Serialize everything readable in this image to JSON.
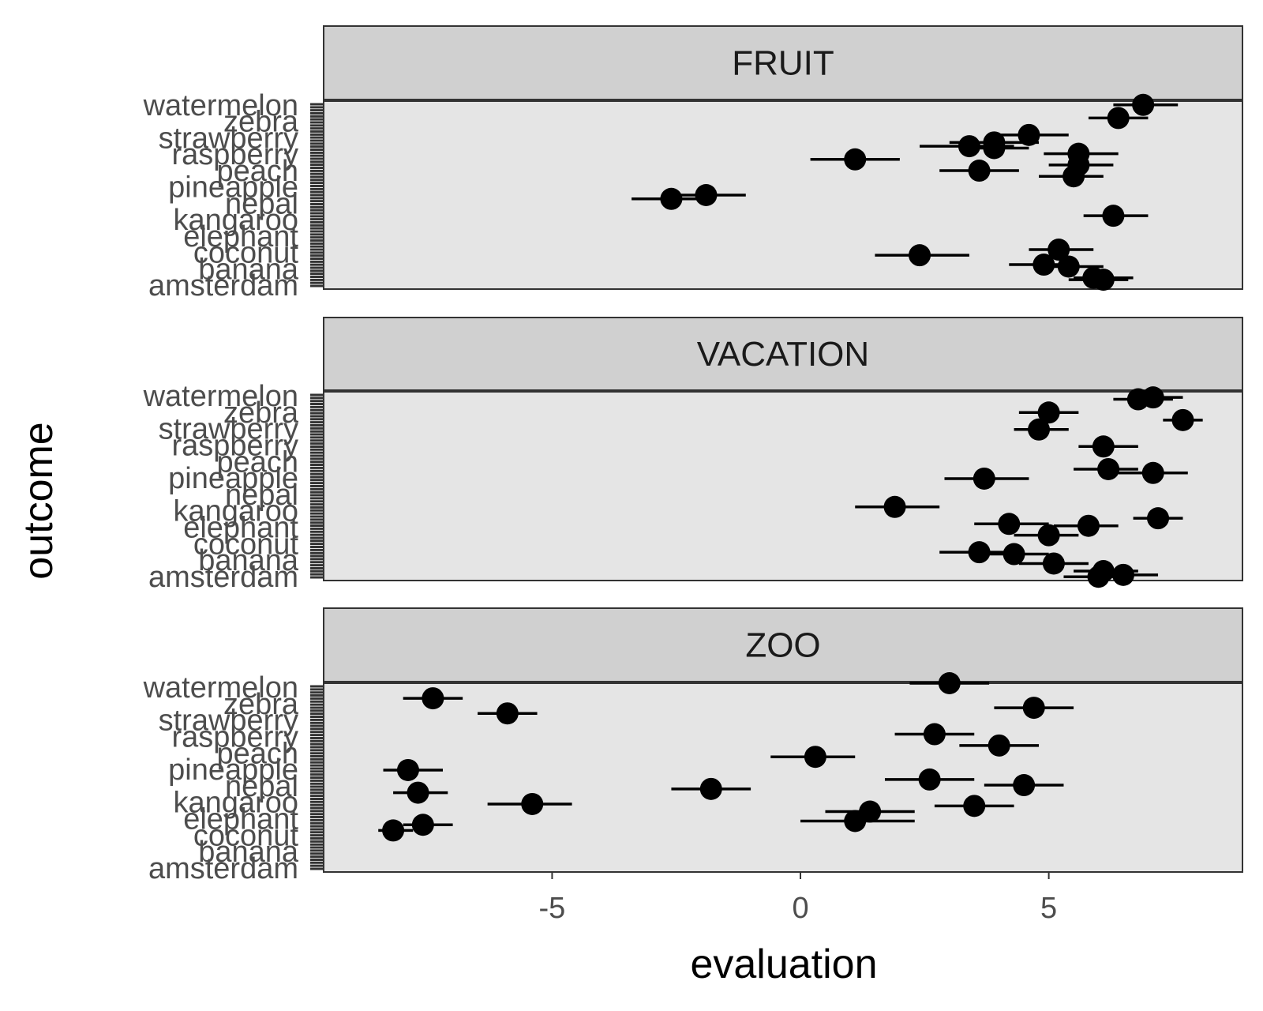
{
  "chart_data": {
    "type": "scatter",
    "subtype": "faceted dot-and-whisker",
    "xlabel": "evaluation",
    "ylabel": "outcome",
    "xlim": [
      -9.6,
      8.9
    ],
    "x_ticks": [
      -5,
      0,
      5
    ],
    "x_tick_labels": [
      "-5",
      "0",
      "5"
    ],
    "grid": false,
    "legend": "none",
    "colors": {
      "panel_bg": "#e5e5e5",
      "strip_bg": "#d0d0d0",
      "border": "#333333",
      "point": "#000000",
      "tick_text": "#4d4d4d"
    },
    "y_labels_visible": [
      "watermelon",
      "zebra",
      "strawberry",
      "raspberry",
      "peach",
      "pineapple",
      "nepal",
      "kangaroo",
      "elephant",
      "coconut",
      "banana",
      "amsterdam"
    ],
    "facets": [
      {
        "name": "FRUIT",
        "points": [
          {
            "pos": 0.02,
            "x": 6.9,
            "lo": 6.3,
            "hi": 7.6
          },
          {
            "pos": 0.09,
            "x": 6.4,
            "lo": 5.8,
            "hi": 7.0
          },
          {
            "pos": 0.18,
            "x": 4.6,
            "lo": 3.8,
            "hi": 5.4
          },
          {
            "pos": 0.22,
            "x": 3.9,
            "lo": 3.0,
            "hi": 4.8
          },
          {
            "pos": 0.24,
            "x": 3.4,
            "lo": 2.4,
            "hi": 4.3
          },
          {
            "pos": 0.25,
            "x": 3.9,
            "lo": 3.3,
            "hi": 4.6
          },
          {
            "pos": 0.28,
            "x": 5.6,
            "lo": 4.9,
            "hi": 6.4
          },
          {
            "pos": 0.31,
            "x": 1.1,
            "lo": 0.2,
            "hi": 2.0
          },
          {
            "pos": 0.34,
            "x": 5.6,
            "lo": 5.0,
            "hi": 6.3
          },
          {
            "pos": 0.37,
            "x": 3.6,
            "lo": 2.8,
            "hi": 4.4
          },
          {
            "pos": 0.4,
            "x": 5.5,
            "lo": 4.8,
            "hi": 6.1
          },
          {
            "pos": 0.5,
            "x": -1.9,
            "lo": -2.7,
            "hi": -1.1
          },
          {
            "pos": 0.52,
            "x": -2.6,
            "lo": -3.4,
            "hi": -1.8
          },
          {
            "pos": 0.61,
            "x": 6.3,
            "lo": 5.7,
            "hi": 7.0
          },
          {
            "pos": 0.79,
            "x": 5.2,
            "lo": 4.6,
            "hi": 5.9
          },
          {
            "pos": 0.82,
            "x": 2.4,
            "lo": 1.5,
            "hi": 3.4
          },
          {
            "pos": 0.87,
            "x": 4.9,
            "lo": 4.2,
            "hi": 5.5
          },
          {
            "pos": 0.88,
            "x": 5.4,
            "lo": 4.7,
            "hi": 6.1
          },
          {
            "pos": 0.94,
            "x": 5.9,
            "lo": 5.5,
            "hi": 6.7
          },
          {
            "pos": 0.95,
            "x": 6.1,
            "lo": 5.4,
            "hi": 6.6
          }
        ]
      },
      {
        "name": "VACATION",
        "points": [
          {
            "pos": 0.03,
            "x": 7.1,
            "lo": 6.6,
            "hi": 7.7
          },
          {
            "pos": 0.04,
            "x": 6.8,
            "lo": 6.3,
            "hi": 7.5
          },
          {
            "pos": 0.11,
            "x": 5.0,
            "lo": 4.4,
            "hi": 5.6
          },
          {
            "pos": 0.15,
            "x": 7.7,
            "lo": 7.3,
            "hi": 8.1
          },
          {
            "pos": 0.2,
            "x": 4.8,
            "lo": 4.3,
            "hi": 5.4
          },
          {
            "pos": 0.29,
            "x": 6.1,
            "lo": 5.6,
            "hi": 6.8
          },
          {
            "pos": 0.41,
            "x": 6.2,
            "lo": 5.5,
            "hi": 6.8
          },
          {
            "pos": 0.43,
            "x": 7.1,
            "lo": 6.4,
            "hi": 7.8
          },
          {
            "pos": 0.46,
            "x": 3.7,
            "lo": 2.9,
            "hi": 4.6
          },
          {
            "pos": 0.61,
            "x": 1.9,
            "lo": 1.1,
            "hi": 2.8
          },
          {
            "pos": 0.67,
            "x": 7.2,
            "lo": 6.7,
            "hi": 7.7
          },
          {
            "pos": 0.7,
            "x": 4.2,
            "lo": 3.5,
            "hi": 5.0
          },
          {
            "pos": 0.71,
            "x": 5.8,
            "lo": 5.1,
            "hi": 6.4
          },
          {
            "pos": 0.76,
            "x": 5.0,
            "lo": 4.3,
            "hi": 5.6
          },
          {
            "pos": 0.85,
            "x": 3.6,
            "lo": 2.8,
            "hi": 4.3
          },
          {
            "pos": 0.86,
            "x": 4.3,
            "lo": 3.6,
            "hi": 5.0
          },
          {
            "pos": 0.91,
            "x": 5.1,
            "lo": 4.4,
            "hi": 5.8
          },
          {
            "pos": 0.95,
            "x": 6.1,
            "lo": 5.5,
            "hi": 6.8
          },
          {
            "pos": 0.97,
            "x": 6.5,
            "lo": 5.8,
            "hi": 7.2
          },
          {
            "pos": 0.98,
            "x": 6.0,
            "lo": 5.3,
            "hi": 6.7
          }
        ]
      },
      {
        "name": "ZOO",
        "points": [
          {
            "pos": 0.0,
            "x": 3.0,
            "lo": 2.2,
            "hi": 3.8
          },
          {
            "pos": 0.08,
            "x": -7.4,
            "lo": -8.0,
            "hi": -6.8
          },
          {
            "pos": 0.13,
            "x": 4.7,
            "lo": 3.9,
            "hi": 5.5
          },
          {
            "pos": 0.16,
            "x": -5.9,
            "lo": -6.5,
            "hi": -5.3
          },
          {
            "pos": 0.27,
            "x": 2.7,
            "lo": 1.9,
            "hi": 3.5
          },
          {
            "pos": 0.33,
            "x": 4.0,
            "lo": 3.2,
            "hi": 4.8
          },
          {
            "pos": 0.39,
            "x": 0.3,
            "lo": -0.6,
            "hi": 1.1
          },
          {
            "pos": 0.46,
            "x": -7.9,
            "lo": -8.4,
            "hi": -7.2
          },
          {
            "pos": 0.51,
            "x": 2.6,
            "lo": 1.7,
            "hi": 3.5
          },
          {
            "pos": 0.54,
            "x": 4.5,
            "lo": 3.7,
            "hi": 5.3
          },
          {
            "pos": 0.56,
            "x": -1.8,
            "lo": -2.6,
            "hi": -1.0
          },
          {
            "pos": 0.58,
            "x": -7.7,
            "lo": -8.2,
            "hi": -7.1
          },
          {
            "pos": 0.64,
            "x": -5.4,
            "lo": -6.3,
            "hi": -4.6
          },
          {
            "pos": 0.65,
            "x": 3.5,
            "lo": 2.7,
            "hi": 4.3
          },
          {
            "pos": 0.68,
            "x": 1.4,
            "lo": 0.5,
            "hi": 2.3
          },
          {
            "pos": 0.73,
            "x": 1.1,
            "lo": 0.0,
            "hi": 2.3
          },
          {
            "pos": 0.75,
            "x": -7.6,
            "lo": -8.0,
            "hi": -7.0
          },
          {
            "pos": 0.78,
            "x": -8.2,
            "lo": -8.5,
            "hi": -7.8
          }
        ]
      }
    ]
  }
}
